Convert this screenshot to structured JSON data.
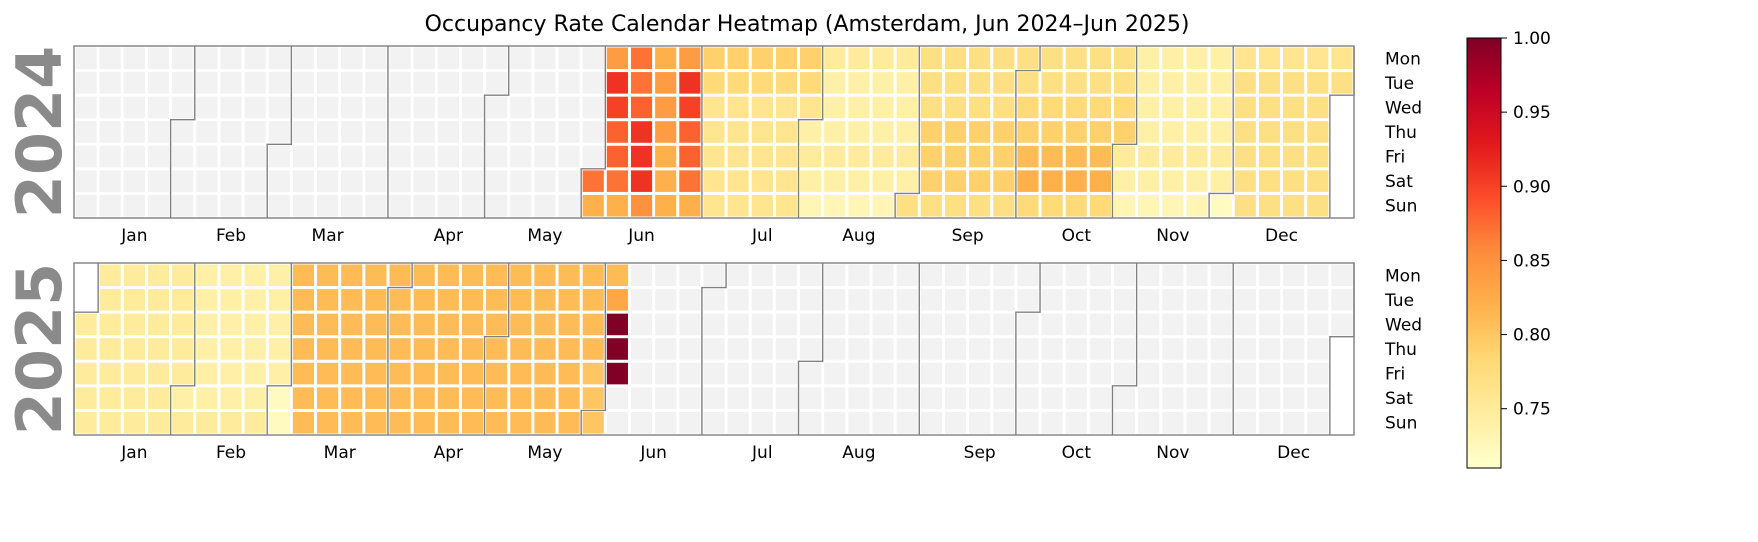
{
  "chart_data": {
    "type": "heatmap",
    "title": "Occupancy Rate Calendar Heatmap (Amsterdam, Jun 2024–Jun 2025)",
    "colormap": "YlOrRd",
    "color_scale": {
      "min": 0.71,
      "max": 1.0
    },
    "colorbar_ticks": [
      "0.75",
      "0.80",
      "0.85",
      "0.90",
      "0.95",
      "1.00"
    ],
    "colorbar_tick_values": [
      0.75,
      0.8,
      0.85,
      0.9,
      0.95,
      1.0
    ],
    "no_data_color": "#f2f2f2",
    "weekday_labels": [
      "Mon",
      "Tue",
      "Wed",
      "Thu",
      "Fri",
      "Sat",
      "Sun"
    ],
    "month_labels": [
      "Jan",
      "Feb",
      "Mar",
      "Apr",
      "May",
      "Jun",
      "Jul",
      "Aug",
      "Sep",
      "Oct",
      "Nov",
      "Dec"
    ],
    "data_range": {
      "start": "2024-06-01",
      "end": "2025-06-06"
    },
    "panels": [
      {
        "year": "2024",
        "monthly_weekday_values": {
          "Jun": [
            0.84,
            0.91,
            0.9,
            0.88,
            0.88,
            0.87,
            0.82
          ],
          "Jul": [
            0.79,
            0.78,
            0.76,
            0.76,
            0.76,
            0.76,
            0.76
          ],
          "Aug": [
            0.75,
            0.74,
            0.74,
            0.74,
            0.75,
            0.74,
            0.73
          ],
          "Sep": [
            0.77,
            0.77,
            0.77,
            0.79,
            0.79,
            0.79,
            0.77
          ],
          "Oct": [
            0.77,
            0.77,
            0.78,
            0.79,
            0.81,
            0.82,
            0.78
          ],
          "Nov": [
            0.74,
            0.74,
            0.74,
            0.74,
            0.75,
            0.74,
            0.73
          ],
          "Dec": [
            0.76,
            0.77,
            0.77,
            0.77,
            0.77,
            0.77,
            0.77
          ]
        },
        "week_overrides": [
          {
            "month": "Jun",
            "week": 2,
            "values": [
              0.87,
              0.87,
              0.88,
              0.91,
              0.91,
              0.91,
              0.85
            ]
          },
          {
            "month": "Jun",
            "week": 3,
            "values": [
              0.82,
              0.84,
              0.84,
              0.84,
              0.82,
              0.82,
              0.82
            ]
          },
          {
            "month": "Dec",
            "week": 0,
            "values": [
              0.72,
              0.72,
              0.72,
              0.72,
              0.72,
              0.72,
              0.72
            ]
          }
        ]
      },
      {
        "year": "2025",
        "monthly_weekday_values": {
          "Jan": [
            0.75,
            0.75,
            0.75,
            0.75,
            0.75,
            0.75,
            0.75
          ],
          "Feb": [
            0.74,
            0.74,
            0.74,
            0.74,
            0.74,
            0.74,
            0.75
          ],
          "Mar": [
            0.81,
            0.81,
            0.81,
            0.81,
            0.81,
            0.81,
            0.81
          ],
          "Apr": [
            0.81,
            0.81,
            0.81,
            0.81,
            0.81,
            0.81,
            0.81
          ],
          "May": [
            0.81,
            0.81,
            0.81,
            0.81,
            0.81,
            0.81,
            0.81
          ],
          "Jun": [
            0.81,
            0.83,
            1.0,
            1.0,
            1.0,
            0.81,
            0.81
          ]
        },
        "day_overrides": [
          {
            "date": "2025-03-01",
            "value": 0.72
          },
          {
            "date": "2025-03-02",
            "value": 0.72
          },
          {
            "date": "2025-05-30",
            "value": 0.8
          },
          {
            "date": "2025-05-31",
            "value": 0.8
          },
          {
            "date": "2025-06-01",
            "value": 0.8
          }
        ]
      }
    ]
  }
}
